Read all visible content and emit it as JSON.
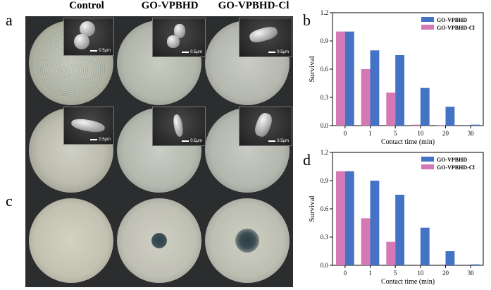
{
  "panel_labels": {
    "a": "a",
    "b": "b",
    "c": "c",
    "d": "d"
  },
  "photo_columns": [
    "Control",
    "GO-VPBHD",
    "GO-VPBHD-Cl"
  ],
  "scale_bar_label": "0.5μm",
  "colors": {
    "series1": "#4472c4",
    "series2": "#d479b4"
  },
  "chart_data": [
    {
      "type": "bar",
      "panel": "b",
      "categories": [
        "0",
        "1",
        "5",
        "10",
        "20",
        "30"
      ],
      "series": [
        {
          "name": "GO-VPBHD",
          "values": [
            1.0,
            0.8,
            0.75,
            0.4,
            0.2,
            0.01
          ]
        },
        {
          "name": "GO-VPBHD-Cl",
          "values": [
            1.0,
            0.6,
            0.35,
            0.01,
            0.005,
            0.0
          ]
        }
      ],
      "xlabel": "Contact time (min)",
      "ylabel": "Survival",
      "ylim": [
        0,
        1.2
      ],
      "yticks": [
        "0.0",
        "0.3",
        "0.6",
        "0.9",
        "1.2"
      ],
      "legend": "top-right"
    },
    {
      "type": "bar",
      "panel": "d",
      "categories": [
        "0",
        "1",
        "5",
        "10",
        "20",
        "30"
      ],
      "series": [
        {
          "name": "GO-VPBHD",
          "values": [
            1.0,
            0.9,
            0.75,
            0.4,
            0.15,
            0.01
          ]
        },
        {
          "name": "GO-VPBHD-Cl",
          "values": [
            1.0,
            0.5,
            0.25,
            0.0,
            0.0,
            0.0
          ]
        }
      ],
      "xlabel": "Contact time (min)",
      "ylabel": "Survival",
      "ylim": [
        0,
        1.2
      ],
      "yticks": [
        "0.0",
        "0.3",
        "0.6",
        "0.9",
        "1.2"
      ],
      "legend": "top-right"
    }
  ]
}
